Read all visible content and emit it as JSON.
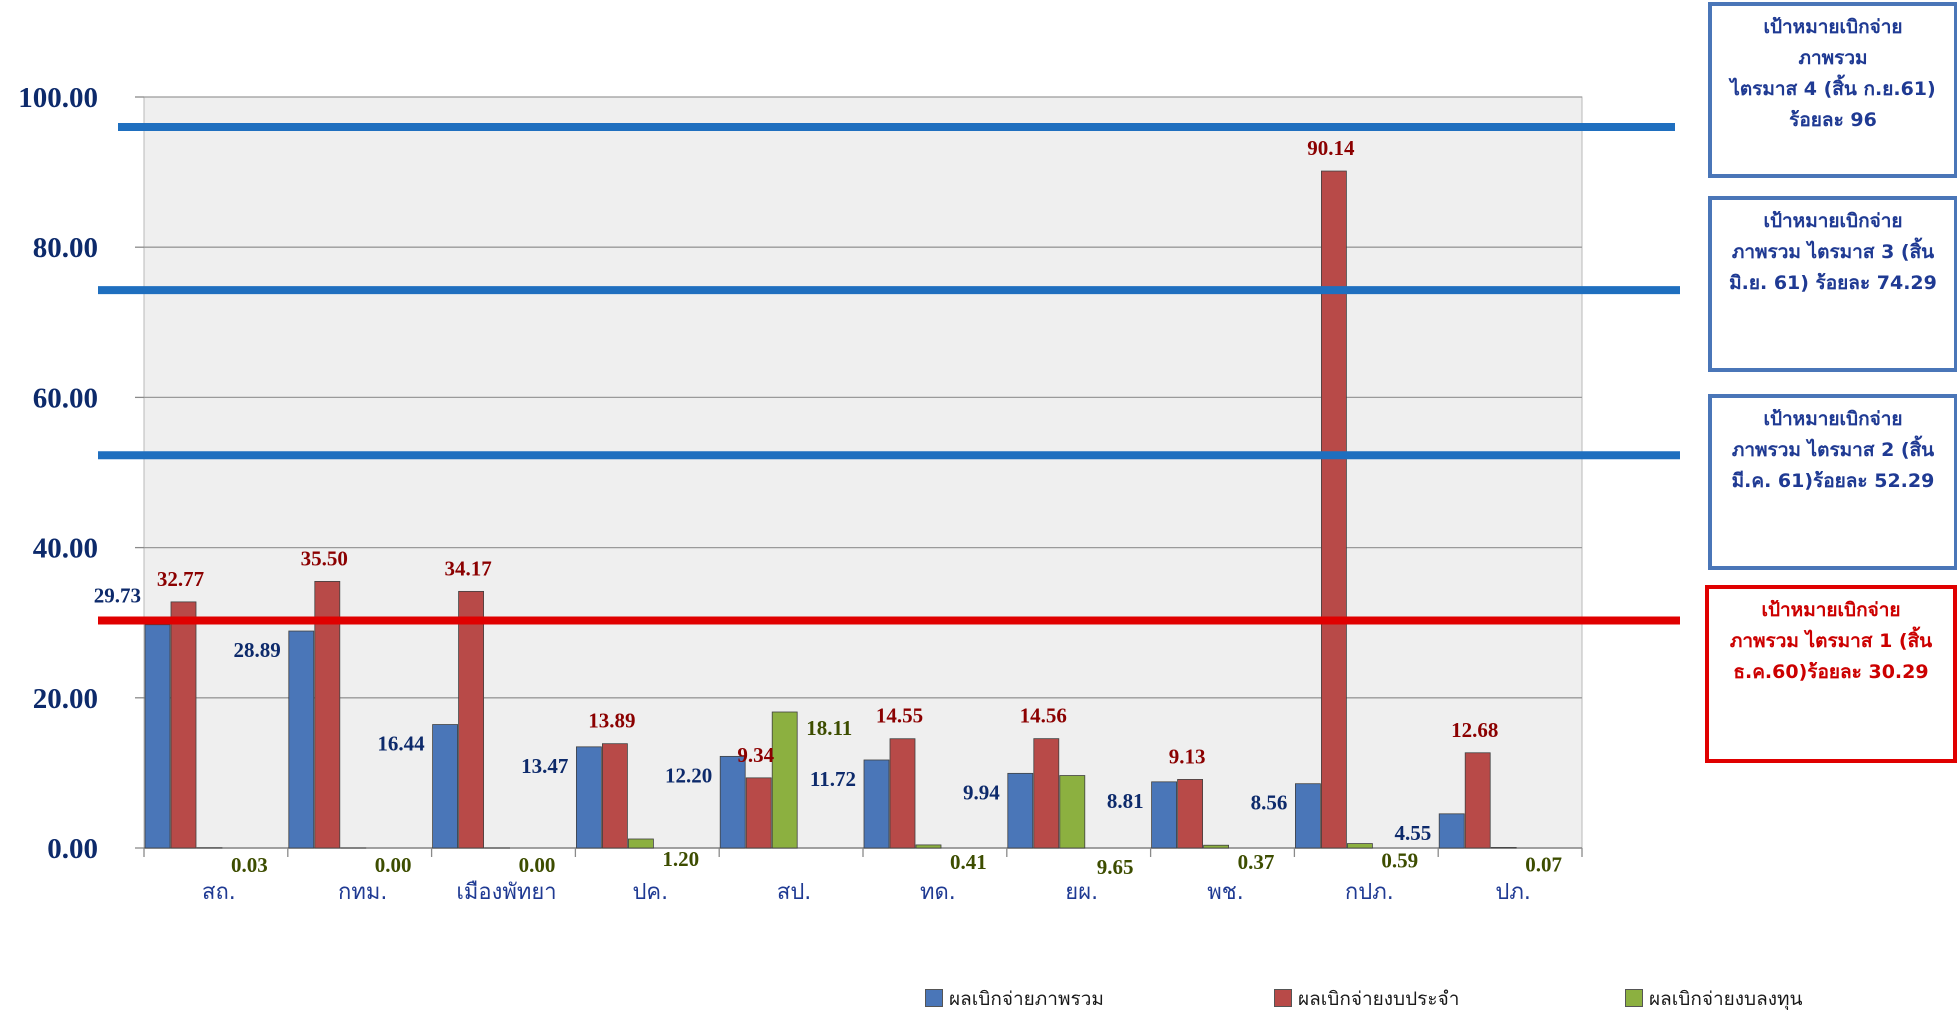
{
  "chart_data": {
    "type": "bar",
    "categories": [
      "สถ.",
      "กทม.",
      "เมืองพัทยา",
      "ปค.",
      "สป.",
      "ทด.",
      "ยผ.",
      "พช.",
      "กปภ.",
      "ปภ."
    ],
    "series": [
      {
        "name": "ผลเบิกจ่ายภาพรวม",
        "color": "#4a76b8",
        "values": [
          29.73,
          28.89,
          16.44,
          13.47,
          12.2,
          11.72,
          9.94,
          8.81,
          8.56,
          4.55
        ],
        "labels": [
          "29.73",
          "28.89",
          "16.44",
          "13.47",
          "12.20",
          "11.72",
          "9.94",
          "8.81",
          "8.56",
          "4.55"
        ]
      },
      {
        "name": "ผลเบิกจ่ายงบประจำ",
        "color": "#b84a48",
        "values": [
          32.77,
          35.5,
          34.17,
          13.89,
          9.34,
          14.55,
          14.56,
          9.13,
          90.14,
          12.68
        ],
        "labels": [
          "32.77",
          "35.50",
          "34.17",
          "13.89",
          "9.34",
          "14.55",
          "14.56",
          "9.13",
          "90.14",
          "12.68"
        ]
      },
      {
        "name": "ผลเบิกจ่ายงบลงทุน",
        "color": "#8cb040",
        "values": [
          0.03,
          0.0,
          0.0,
          1.2,
          18.11,
          0.41,
          9.65,
          0.37,
          0.59,
          0.07
        ],
        "labels": [
          "0.03",
          "0.00",
          "0.00",
          "1.20",
          "18.11",
          "0.41",
          "9.65",
          "0.37",
          "0.59",
          "0.07"
        ]
      }
    ],
    "ylim": [
      0,
      100
    ],
    "yticks": [
      "0.00",
      "20.00",
      "40.00",
      "60.00",
      "80.00",
      "100.00"
    ],
    "grid": true,
    "legend_position": "bottom-right",
    "target_lines": [
      {
        "value": 96,
        "color": "#1f6fbf"
      },
      {
        "value": 74.29,
        "color": "#1f6fbf"
      },
      {
        "value": 52.29,
        "color": "#1f6fbf"
      },
      {
        "value": 30.29,
        "color": "#e00000"
      }
    ]
  },
  "target_boxes": [
    {
      "text": "เป้าหมายเบิกจ่าย\nภาพรวม\nไตรมาส 4 (สิ้น ก.ย.61)\nร้อยละ 96",
      "border": "#4a76b8",
      "text_color": "#1f3a93"
    },
    {
      "text": "เป้าหมายเบิกจ่าย\nภาพรวม ไตรมาส 3 (สิ้น\nมิ.ย. 61)  ร้อยละ 74.29",
      "border": "#4a76b8",
      "text_color": "#1f3a93"
    },
    {
      "text": "เป้าหมายเบิกจ่าย\nภาพรวม ไตรมาส 2 (สิ้น\nมี.ค. 61)ร้อยละ 52.29",
      "border": "#4a76b8",
      "text_color": "#1f3a93"
    },
    {
      "text": "เป้าหมายเบิกจ่าย\nภาพรวม ไตรมาส 1 (สิ้น\nธ.ค.60)ร้อยละ 30.29",
      "border": "#e00000",
      "text_color": "#cc0000"
    }
  ]
}
